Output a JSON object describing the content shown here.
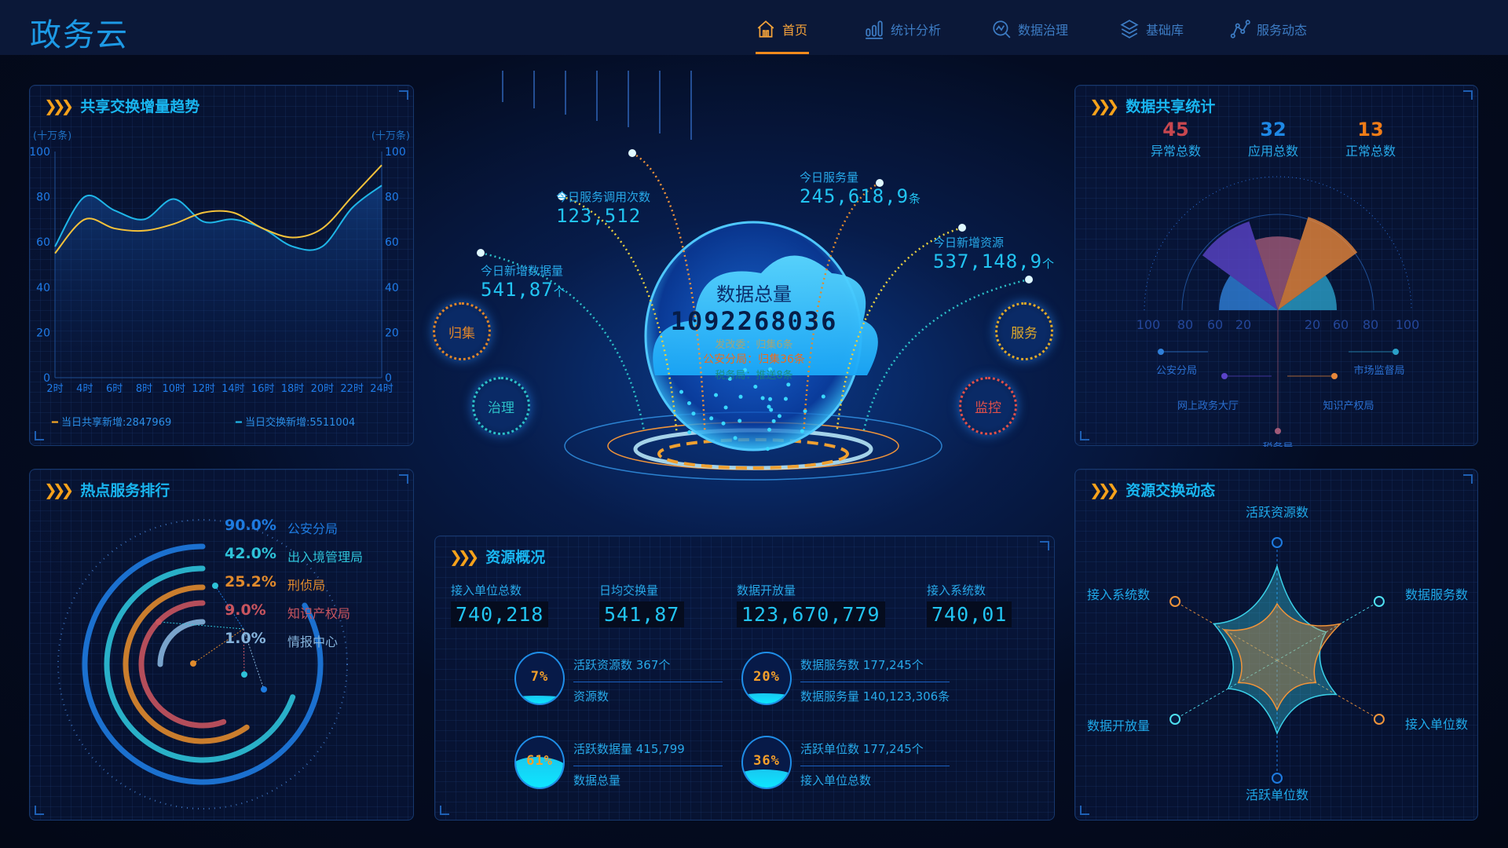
{
  "header": {
    "title": "政务云",
    "nav": [
      {
        "label": "首页",
        "icon": "home-icon",
        "active": true
      },
      {
        "label": "统计分析",
        "icon": "bar-chart-icon"
      },
      {
        "label": "数据治理",
        "icon": "search-chart-icon"
      },
      {
        "label": "基础库",
        "icon": "layers-icon"
      },
      {
        "label": "服务动态",
        "icon": "network-icon"
      }
    ]
  },
  "trend": {
    "title": "共享交换增量趋势",
    "unit_left": "(十万条)",
    "unit_right": "(十万条)",
    "legend": [
      {
        "label": "当日共享新增:2847969",
        "color": "#f5a623"
      },
      {
        "label": "当日交换新增:5511004",
        "color": "#1fb6e8"
      }
    ]
  },
  "ranking": {
    "title": "热点服务排行",
    "items": [
      {
        "pct": "90.0%",
        "name": "公安分局",
        "color": "#1e7be0"
      },
      {
        "pct": "42.0%",
        "name": "出入境管理局",
        "color": "#2ec2d8"
      },
      {
        "pct": "25.2%",
        "name": "刑侦局",
        "color": "#e08a2c"
      },
      {
        "pct": "9.0%",
        "name": "知识产权局",
        "color": "#c8545e"
      },
      {
        "pct": "1.0%",
        "name": "情报中心",
        "color": "#86b4dc"
      }
    ]
  },
  "center": {
    "total_label": "数据总量",
    "total_value": "1092268036",
    "feed": [
      "发改委：归集6条",
      "公安分局：归集36条",
      "税务局：推送8条"
    ],
    "stats": [
      {
        "label": "今日新增数据量",
        "value": "541,87",
        "unit": "个"
      },
      {
        "label": "今日服务调用次数",
        "value": "123,512",
        "unit": ""
      },
      {
        "label": "今日服务量",
        "value": "245,618,9",
        "unit": "条"
      },
      {
        "label": "今日新增资源",
        "value": "537,148,9",
        "unit": "个"
      }
    ],
    "nodes": [
      {
        "label": "归集",
        "color": "#e0862a"
      },
      {
        "label": "治理",
        "color": "#2cc0c8"
      },
      {
        "label": "服务",
        "color": "#e0a92a"
      },
      {
        "label": "监控",
        "color": "#e0504a"
      }
    ]
  },
  "resources": {
    "title": "资源概况",
    "metrics": [
      {
        "label": "接入单位总数",
        "value": "740,218"
      },
      {
        "label": "日均交换量",
        "value": "541,87"
      },
      {
        "label": "数据开放量",
        "value": "123,670,779"
      },
      {
        "label": "接入系统数",
        "value": "740,01"
      }
    ],
    "gauges": [
      {
        "pct": "7%",
        "fill": 0.07,
        "top": "活跃资源数 367个",
        "bottom": "资源数"
      },
      {
        "pct": "20%",
        "fill": 0.2,
        "top": "数据服务数 177,245个",
        "bottom": "数据服务量 140,123,306条"
      },
      {
        "pct": "61%",
        "fill": 0.61,
        "top": "活跃数据量 415,799",
        "bottom": "数据总量"
      },
      {
        "pct": "36%",
        "fill": 0.36,
        "top": "活跃单位数 177,245个",
        "bottom": "接入单位总数"
      }
    ]
  },
  "share": {
    "title": "数据共享统计",
    "kpis": [
      {
        "value": "45",
        "label": "异常总数",
        "color": "#c8474f"
      },
      {
        "value": "32",
        "label": "应用总数",
        "color": "#1e88e5"
      },
      {
        "value": "13",
        "label": "正常总数",
        "color": "#f07c17"
      }
    ]
  },
  "exchange": {
    "title": "资源交换动态"
  },
  "chart_data": [
    {
      "type": "line",
      "title": "共享交换增量趋势",
      "ylabel": "(十万条)",
      "ylim": [
        0,
        100
      ],
      "yticks": [
        0,
        20,
        40,
        60,
        80,
        100
      ],
      "categories": [
        "2时",
        "4时",
        "6时",
        "8时",
        "10时",
        "12时",
        "14时",
        "16时",
        "18时",
        "20时",
        "22时",
        "24时"
      ],
      "series": [
        {
          "name": "当日共享新增",
          "color": "#f5c23a",
          "values": [
            55,
            70,
            66,
            65,
            68,
            73,
            73,
            66,
            62,
            66,
            80,
            94
          ]
        },
        {
          "name": "当日交换新增",
          "color": "#1fb6e8",
          "values": [
            58,
            80,
            74,
            70,
            79,
            69,
            70,
            66,
            58,
            58,
            75,
            85
          ]
        }
      ]
    },
    {
      "type": "pie",
      "variant": "rose-semicircle",
      "axis_ticks": [
        "100",
        "80",
        "60",
        "20",
        "20",
        "60",
        "80",
        "100"
      ],
      "categories": [
        "公安分局",
        "网上政务大厅",
        "税务局",
        "知识产权局",
        "市场监督局"
      ],
      "values": [
        60,
        95,
        75,
        100,
        60
      ],
      "colors": [
        "#2f7fd8",
        "#5a43c8",
        "#a05a78",
        "#e8873a",
        "#2aa0c8"
      ]
    },
    {
      "type": "radar",
      "axes": [
        "活跃资源数",
        "数据服务数",
        "接入单位数",
        "活跃单位数",
        "数据开放量",
        "接入系统数"
      ],
      "axis_colors": [
        "#1e7be0",
        "#4fe0f0",
        "#f0943a",
        "#1e7be0",
        "#4fe0f0",
        "#f0943a"
      ],
      "max": 100,
      "series": [
        {
          "color": "#3ad0e8",
          "values": [
            80,
            48,
            58,
            62,
            48,
            62
          ]
        },
        {
          "color": "#f0943a",
          "values": [
            48,
            62,
            38,
            42,
            38,
            52
          ]
        }
      ]
    }
  ]
}
